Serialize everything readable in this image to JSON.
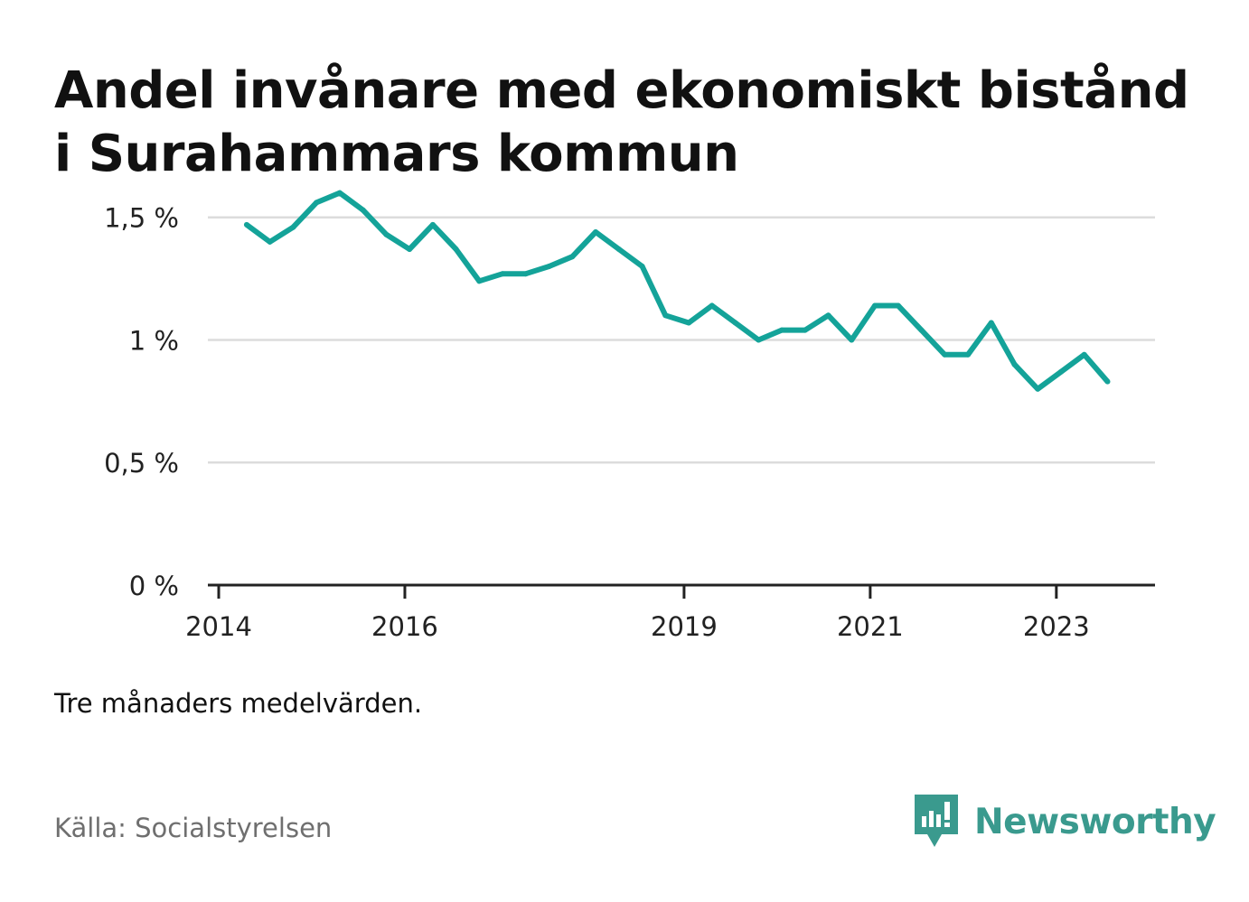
{
  "title": "Andel invånare med ekonomiskt bistånd i Surahammars kommun",
  "note": "Tre månaders medelvärden.",
  "source": "Källa: Socialstyrelsen",
  "brand": {
    "name": "Newsworthy",
    "icon": "newsworthy-logo-icon",
    "color": "#3a9a8e"
  },
  "chart_data": {
    "type": "line",
    "title": "Andel invånare med ekonomiskt bistånd i Surahammars kommun",
    "xlabel": "",
    "ylabel": "",
    "line_color": "#14a399",
    "grid": true,
    "y_ticks": [
      {
        "value": 0,
        "label": "0 %"
      },
      {
        "value": 0.5,
        "label": "0,5 %"
      },
      {
        "value": 1,
        "label": "1 %"
      },
      {
        "value": 1.5,
        "label": "1,5 %"
      }
    ],
    "ylim": [
      0,
      1.65
    ],
    "x_ticks": [
      {
        "value": 2014,
        "label": "2014"
      },
      {
        "value": 2016,
        "label": "2016"
      },
      {
        "value": 2019,
        "label": "2019"
      },
      {
        "value": 2021,
        "label": "2021"
      },
      {
        "value": 2023,
        "label": "2023"
      }
    ],
    "xlim": [
      2014.0,
      2024.06
    ],
    "series": [
      {
        "values": [
          {
            "x": 2014.3,
            "y": 1.47
          },
          {
            "x": 2014.55,
            "y": 1.4
          },
          {
            "x": 2014.8,
            "y": 1.46
          },
          {
            "x": 2015.05,
            "y": 1.56
          },
          {
            "x": 2015.3,
            "y": 1.6
          },
          {
            "x": 2015.55,
            "y": 1.53
          },
          {
            "x": 2015.8,
            "y": 1.43
          },
          {
            "x": 2016.05,
            "y": 1.37
          },
          {
            "x": 2016.3,
            "y": 1.47
          },
          {
            "x": 2016.55,
            "y": 1.37
          },
          {
            "x": 2016.8,
            "y": 1.24
          },
          {
            "x": 2017.05,
            "y": 1.27
          },
          {
            "x": 2017.3,
            "y": 1.27
          },
          {
            "x": 2017.55,
            "y": 1.3
          },
          {
            "x": 2017.8,
            "y": 1.34
          },
          {
            "x": 2018.05,
            "y": 1.44
          },
          {
            "x": 2018.3,
            "y": 1.37
          },
          {
            "x": 2018.55,
            "y": 1.3
          },
          {
            "x": 2018.8,
            "y": 1.1
          },
          {
            "x": 2019.05,
            "y": 1.07
          },
          {
            "x": 2019.3,
            "y": 1.14
          },
          {
            "x": 2019.55,
            "y": 1.07
          },
          {
            "x": 2019.8,
            "y": 1.0
          },
          {
            "x": 2020.05,
            "y": 1.04
          },
          {
            "x": 2020.3,
            "y": 1.04
          },
          {
            "x": 2020.55,
            "y": 1.1
          },
          {
            "x": 2020.8,
            "y": 1.0
          },
          {
            "x": 2021.05,
            "y": 1.14
          },
          {
            "x": 2021.3,
            "y": 1.14
          },
          {
            "x": 2021.55,
            "y": 1.04
          },
          {
            "x": 2021.8,
            "y": 0.94
          },
          {
            "x": 2022.05,
            "y": 0.94
          },
          {
            "x": 2022.3,
            "y": 1.07
          },
          {
            "x": 2022.55,
            "y": 0.9
          },
          {
            "x": 2022.8,
            "y": 0.8
          },
          {
            "x": 2023.05,
            "y": 0.87
          },
          {
            "x": 2023.3,
            "y": 0.94
          },
          {
            "x": 2023.55,
            "y": 0.83
          }
        ]
      }
    ]
  }
}
